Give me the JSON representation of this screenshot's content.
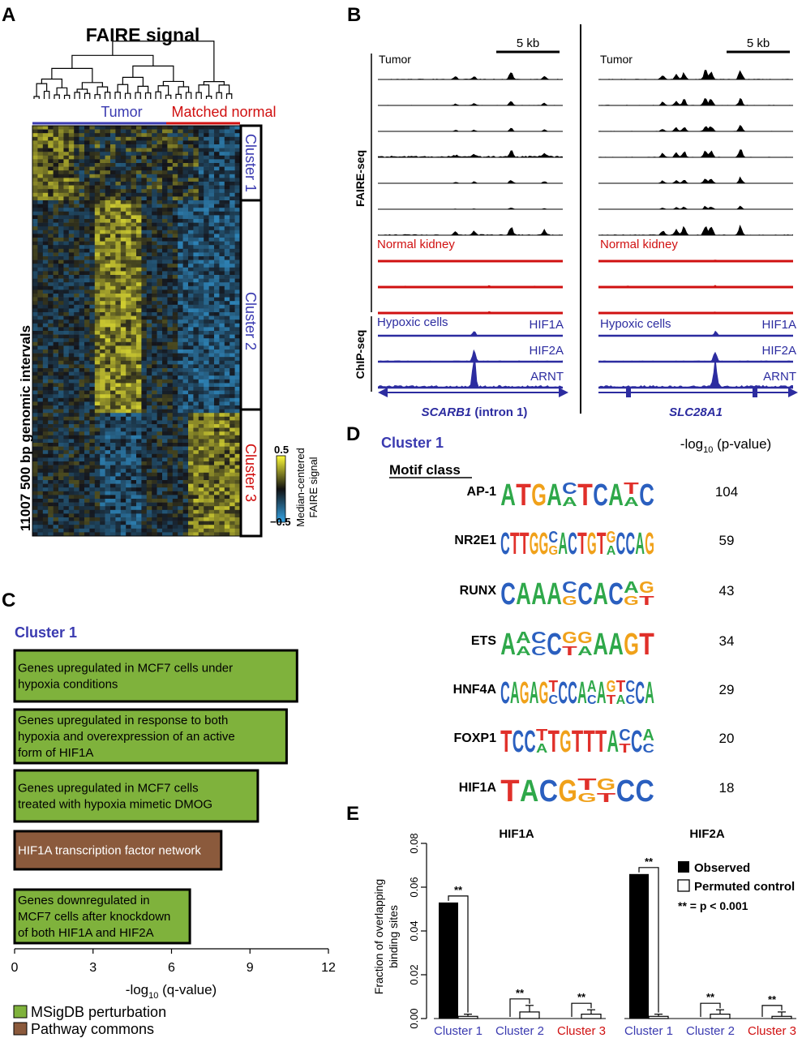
{
  "panels": {
    "a": {
      "letter": "A",
      "title": "FAIRE signal",
      "group_tumor": "Tumor",
      "group_normal": "Matched normal",
      "ylabel": "11007 500 bp genomic intervals",
      "clusters": [
        "Cluster 1",
        "Cluster 2",
        "Cluster 3"
      ],
      "colorbar_max": "0.5",
      "colorbar_min": "−0.5",
      "colorbar_label_1": "Median-centered",
      "colorbar_label_2": "FAIRE signal"
    },
    "b": {
      "letter": "B",
      "scale": "5 kb",
      "tumor": "Tumor",
      "normal": "Normal kidney",
      "faire_label": "FAIRE-seq",
      "chip_label": "ChIP-seq",
      "hypoxic": "Hypoxic cells",
      "tfs": [
        "HIF1A",
        "HIF2A",
        "ARNT"
      ],
      "gene_left": "SCARB1",
      "gene_left_suffix": " (intron 1)",
      "gene_right": "SLC28A1"
    },
    "c": {
      "letter": "C",
      "cluster": "Cluster 1",
      "xlabel_prefix": "-log",
      "xlabel_sub": "10",
      "xlabel_suffix": " (q-value)",
      "legend": [
        "MSigDB perturbation",
        "Pathway commons"
      ],
      "legend_colors": [
        "#7fb23c",
        "#8b5a3c"
      ]
    },
    "d": {
      "letter": "D",
      "cluster": "Cluster 1",
      "header_prefix": "-log",
      "header_sub": "10",
      "header_suffix": " (p-value)",
      "motif_class": "Motif class",
      "motifs": [
        {
          "name": "AP-1",
          "logo": "ATGACTCATC",
          "p": "104"
        },
        {
          "name": "NR2E1",
          "logo": "CTTGGCACTGTGCCAG",
          "p": "59"
        },
        {
          "name": "RUNX",
          "logo": "CAAACCACAG",
          "p": "43"
        },
        {
          "name": "ETS",
          "logo": "AACCGGAAGT",
          "p": "34"
        },
        {
          "name": "HNF4A",
          "logo": "CAGAGTCCAAAGTCCA",
          "p": "29"
        },
        {
          "name": "FOXP1",
          "logo": "TCCTTGTTTACCA",
          "p": "20"
        },
        {
          "name": "HIF1A",
          "logo": "TACGTGCC",
          "p": "18"
        }
      ]
    },
    "e": {
      "letter": "E",
      "ylabel_1": "Fraction of overlapping",
      "ylabel_2": "binding sites",
      "legend_observed": "Observed",
      "legend_permuted": "Permuted control",
      "legend_sig": "** = p < 0.001",
      "sig_mark": "**"
    }
  },
  "chart_data": [
    {
      "type": "bar",
      "categories": [
        "Genes upregulated in MCF7 cells under hypoxia conditions",
        "Genes upregulated in response to both hypoxia and overexpression of an active form of HIF1A",
        "Genes upregulated in MCF7 cells treated with hypoxia mimetic DMOG",
        "HIF1A transcription factor network",
        "Genes downregulated in MCF7 cells after knockdown of both HIF1A and HIF2A"
      ],
      "label_lines": [
        [
          "Genes upregulated in MCF7 cells under",
          "hypoxia conditions"
        ],
        [
          "Genes upregulated in response to both",
          "hypoxia and overexpression of an active",
          "form of HIF1A"
        ],
        [
          "Genes upregulated in MCF7 cells",
          "treated with hypoxia mimetic DMOG"
        ],
        [
          "HIF1A transcription factor network"
        ],
        [
          "Genes downregulated in",
          "MCF7 cells after knockdown",
          "of both HIF1A and HIF2A"
        ]
      ],
      "values": [
        10.8,
        10.4,
        9.3,
        7.9,
        6.7
      ],
      "kinds": [
        "MSigDB perturbation",
        "MSigDB perturbation",
        "MSigDB perturbation",
        "Pathway commons",
        "MSigDB perturbation"
      ],
      "xlim": [
        0,
        12
      ],
      "xticks": [
        "0",
        "3",
        "6",
        "9",
        "12"
      ]
    },
    {
      "type": "bar",
      "groups": [
        "HIF1A",
        "HIF2A"
      ],
      "categories": [
        "Cluster 1",
        "Cluster 2",
        "Cluster 3"
      ],
      "category_colors": [
        "#3a3ab0",
        "#3a3ab0",
        "#d01010"
      ],
      "series": [
        {
          "name": "Observed",
          "values": [
            [
              0.053,
              0.0,
              0.0
            ],
            [
              0.066,
              0.0,
              0.0
            ]
          ]
        },
        {
          "name": "Permuted control",
          "values": [
            [
              0.001,
              0.003,
              0.002
            ],
            [
              0.001,
              0.002,
              0.001
            ]
          ]
        }
      ],
      "errors": [
        [
          0.001,
          0.003,
          0.002
        ],
        [
          0.001,
          0.002,
          0.002
        ]
      ],
      "ylim": [
        0,
        0.08
      ],
      "yticks": [
        "0.00",
        "0.02",
        "0.04",
        "0.06",
        "0.08"
      ]
    }
  ]
}
